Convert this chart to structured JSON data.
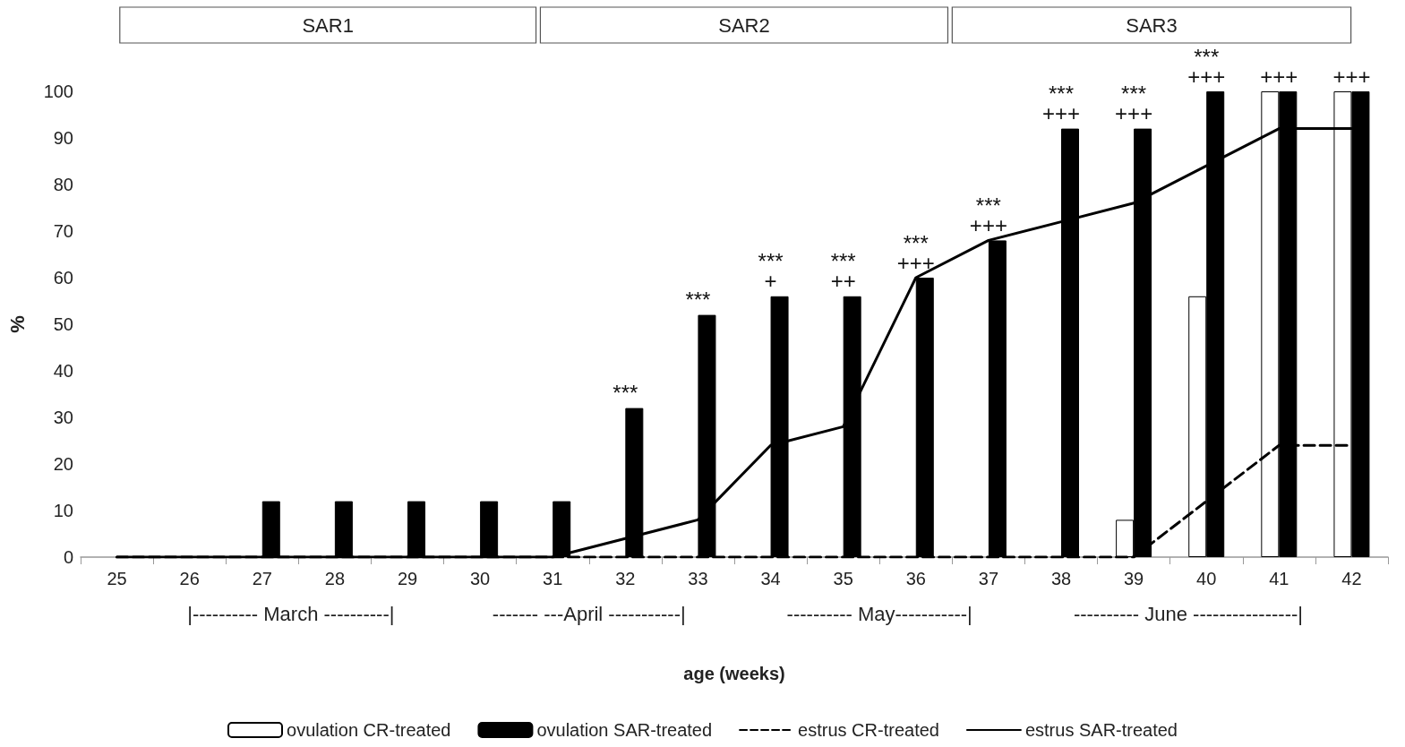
{
  "chart_data": {
    "type": "bar",
    "xlabel": "age (weeks)",
    "ylabel": "%",
    "categories": [
      "25",
      "26",
      "27",
      "28",
      "29",
      "30",
      "31",
      "32",
      "33",
      "34",
      "35",
      "36",
      "37",
      "38",
      "39",
      "40",
      "41",
      "42"
    ],
    "series": [
      {
        "name": "ovulation CR-treated",
        "color": "#ffffff",
        "values": [
          0,
          0,
          0,
          0,
          0,
          0,
          0,
          0,
          0,
          0,
          0,
          0,
          0,
          0,
          8,
          56,
          100,
          100
        ]
      },
      {
        "name": "ovulation SAR-treated",
        "color": "#000000",
        "values": [
          0,
          0,
          12,
          12,
          12,
          12,
          12,
          32,
          52,
          56,
          56,
          60,
          68,
          92,
          92,
          100,
          100,
          100
        ]
      },
      {
        "name": "estrus CR-treated",
        "type": "line",
        "color": "#000000",
        "line_style": "dashed",
        "values": [
          0,
          0,
          0,
          0,
          0,
          0,
          0,
          0,
          0,
          0,
          0,
          0,
          0,
          0,
          0,
          12,
          24,
          24
        ]
      },
      {
        "name": "estrus SAR-treated",
        "type": "line",
        "color": "#000000",
        "line_style": "solid",
        "values": [
          0,
          0,
          0,
          0,
          0,
          0,
          0,
          4,
          8,
          24,
          28,
          60,
          68,
          72,
          76,
          84,
          92,
          92
        ]
      }
    ],
    "ylim": [
      0,
      100
    ],
    "yticks": [
      0,
      10,
      20,
      30,
      40,
      50,
      60,
      70,
      80,
      90,
      100
    ],
    "grid": false,
    "legend": "bottom",
    "marker": "none",
    "annotations": [
      "SAR1",
      "SAR2",
      "SAR3",
      "|---------- March ----------|",
      "------- ---April -----------|",
      "---------- May-----------|",
      "---------- June ----------------|",
      {
        "text": "***",
        "x": "32",
        "y": 32
      },
      {
        "text": "***",
        "x": "33",
        "y": 52
      },
      {
        "text": "***\n+",
        "x": "34",
        "y": 56
      },
      {
        "text": "***\n++",
        "x": "35",
        "y": 56
      },
      {
        "text": "***\n+++",
        "x": "36",
        "y": 60
      },
      {
        "text": "***\n+++",
        "x": "37",
        "y": 68
      },
      {
        "text": "***\n+++",
        "x": "38",
        "y": 92
      },
      {
        "text": "***\n+++",
        "x": "39",
        "y": 92
      },
      {
        "text": "***\n+++",
        "x": "40",
        "y": 100
      },
      {
        "text": "+++",
        "x": "41",
        "y": 100
      },
      {
        "text": "+++",
        "x": "42",
        "y": 100
      }
    ]
  }
}
